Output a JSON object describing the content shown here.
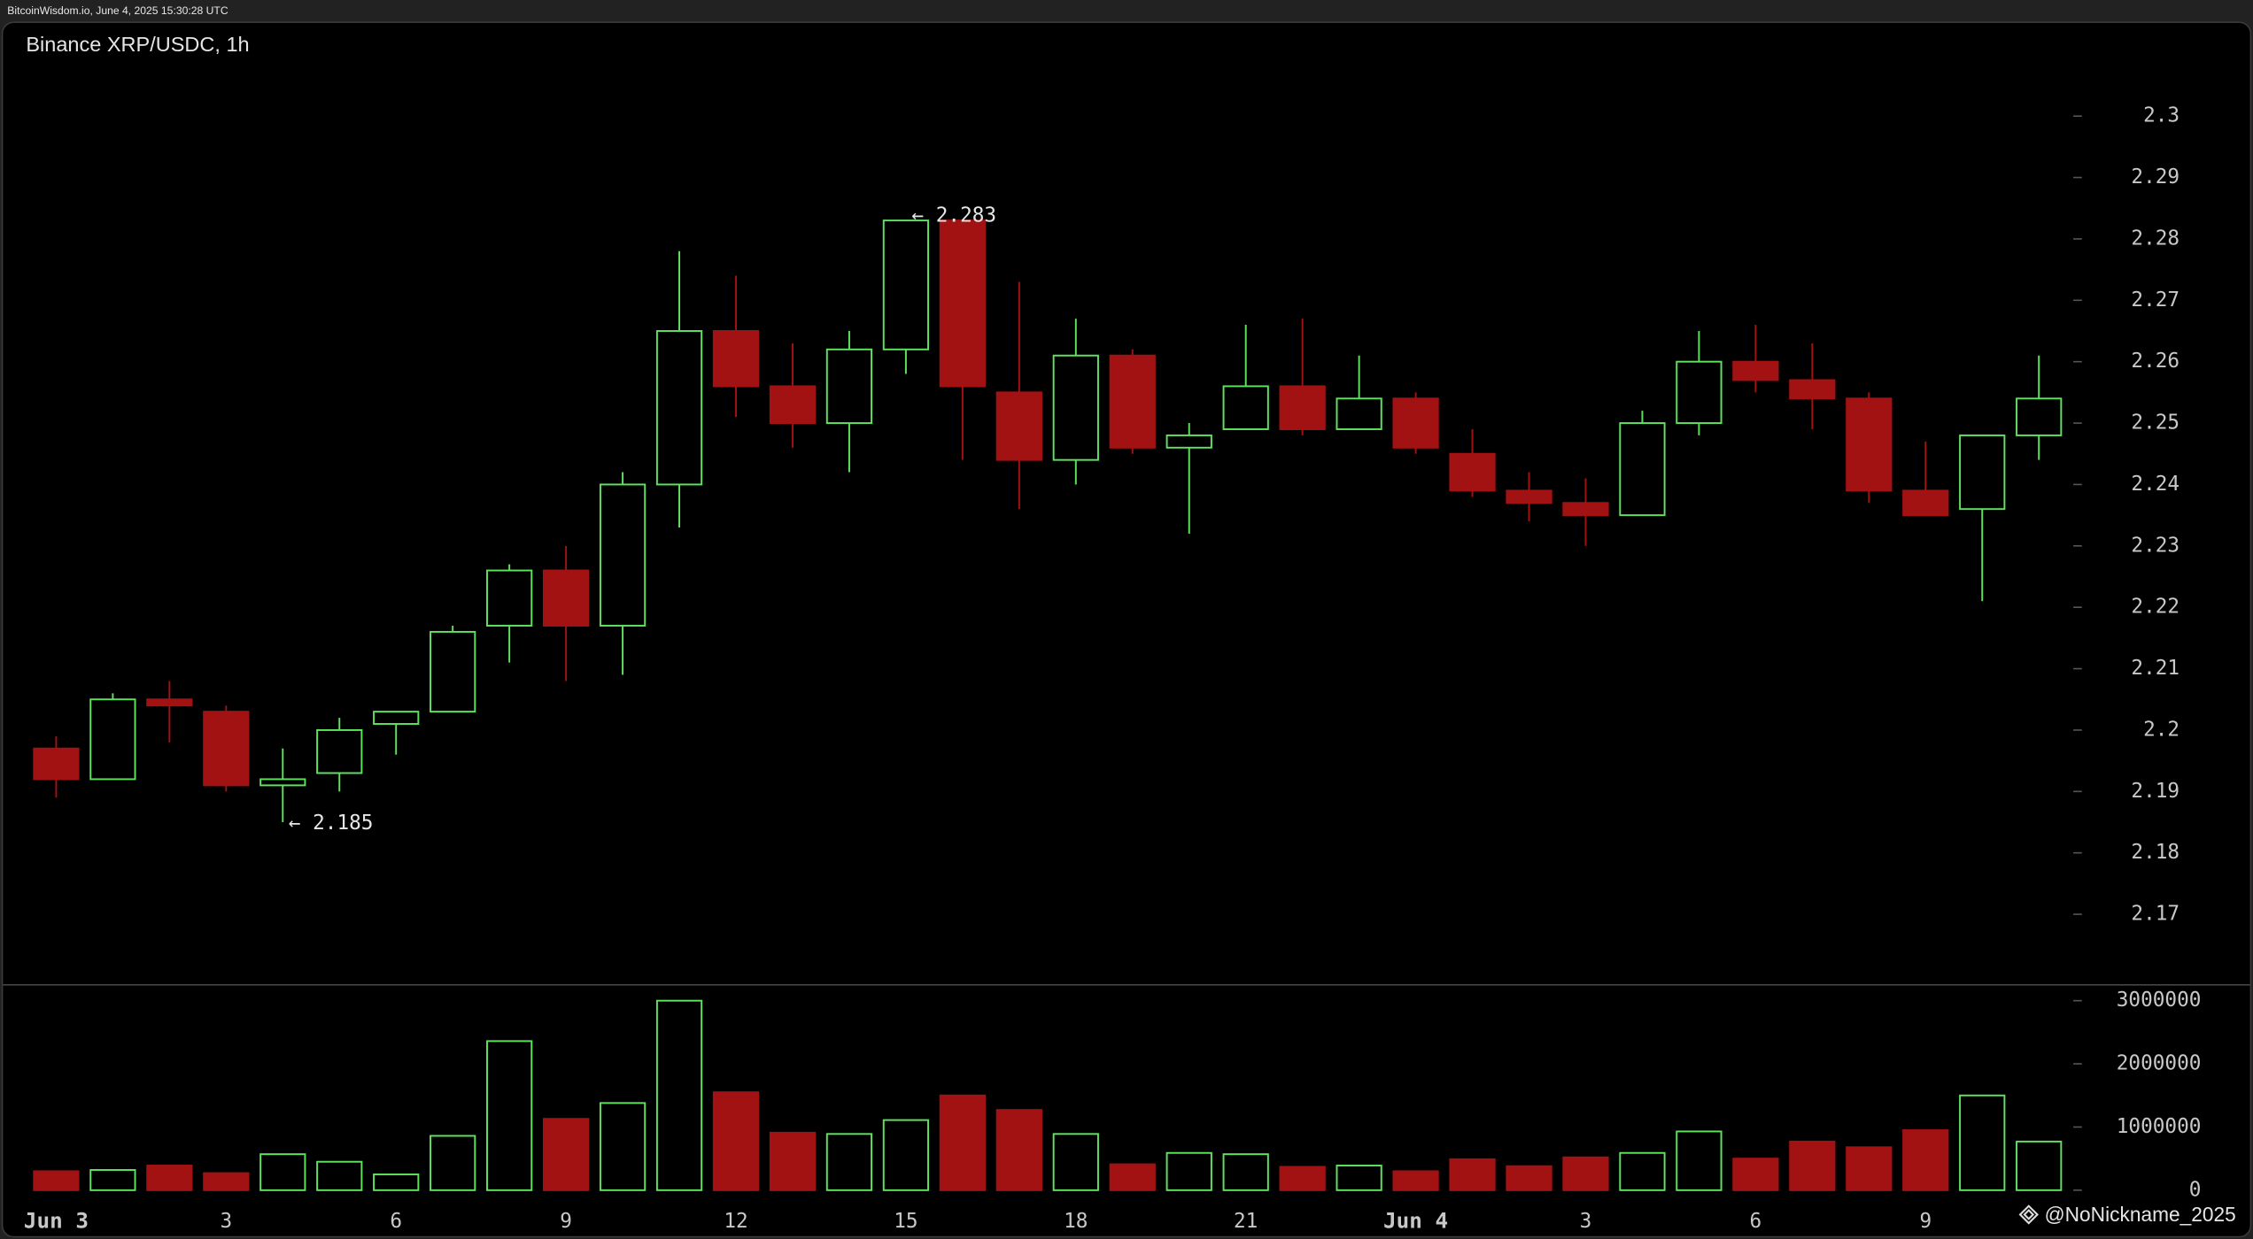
{
  "header": "BitcoinWisdom.io, June 4, 2025 15:30:28 UTC",
  "watermark": "@NoNickname_2025",
  "chart_data": {
    "type": "candlestick",
    "title": "Binance XRP/USDC, 1h",
    "categories": [
      "Jun 3",
      null,
      null,
      "3",
      null,
      null,
      "6",
      null,
      null,
      "9",
      null,
      null,
      "12",
      null,
      null,
      "15",
      null,
      null,
      "18",
      null,
      null,
      "21",
      null,
      null,
      "Jun 4",
      null,
      null,
      "3",
      null,
      null,
      "6",
      null,
      null,
      "9",
      null,
      null
    ],
    "up_color": "#5fe35f",
    "down_color": "#a31212",
    "series": {
      "open": [
        2.197,
        2.192,
        2.205,
        2.203,
        2.191,
        2.193,
        2.201,
        2.203,
        2.217,
        2.226,
        2.217,
        2.24,
        2.265,
        2.256,
        2.25,
        2.262,
        2.283,
        2.255,
        2.244,
        2.261,
        2.246,
        2.249,
        2.256,
        2.249,
        2.254,
        2.245,
        2.239,
        2.237,
        2.235,
        2.25,
        2.26,
        2.257,
        2.254,
        2.239,
        2.236,
        2.248
      ],
      "high": [
        2.199,
        2.206,
        2.208,
        2.204,
        2.197,
        2.202,
        2.203,
        2.217,
        2.227,
        2.23,
        2.242,
        2.278,
        2.274,
        2.263,
        2.265,
        2.283,
        2.283,
        2.273,
        2.267,
        2.262,
        2.25,
        2.266,
        2.267,
        2.261,
        2.255,
        2.249,
        2.242,
        2.241,
        2.252,
        2.265,
        2.266,
        2.263,
        2.255,
        2.247,
        2.248,
        2.261
      ],
      "low": [
        2.189,
        2.192,
        2.198,
        2.19,
        2.185,
        2.19,
        2.196,
        2.203,
        2.211,
        2.208,
        2.209,
        2.233,
        2.251,
        2.246,
        2.242,
        2.258,
        2.244,
        2.236,
        2.24,
        2.245,
        2.232,
        2.249,
        2.248,
        2.249,
        2.245,
        2.238,
        2.234,
        2.23,
        2.235,
        2.248,
        2.255,
        2.249,
        2.237,
        2.235,
        2.221,
        2.244
      ],
      "close": [
        2.192,
        2.205,
        2.204,
        2.191,
        2.192,
        2.2,
        2.203,
        2.216,
        2.226,
        2.217,
        2.24,
        2.265,
        2.256,
        2.25,
        2.262,
        2.283,
        2.256,
        2.244,
        2.261,
        2.246,
        2.248,
        2.256,
        2.249,
        2.254,
        2.246,
        2.239,
        2.237,
        2.235,
        2.25,
        2.26,
        2.257,
        2.254,
        2.239,
        2.235,
        2.248,
        2.254
      ]
    },
    "ylim": [
      2.1585,
      2.3154
    ],
    "yticks": [
      2.17,
      2.18,
      2.19,
      2.2,
      2.21,
      2.22,
      2.23,
      2.24,
      2.25,
      2.26,
      2.27,
      2.28,
      2.29,
      2.3
    ],
    "annotations": [
      "← 2.283",
      "← 2.185"
    ],
    "volume": {
      "values": [
        300000,
        320000,
        390000,
        270000,
        570000,
        450000,
        250000,
        860000,
        2360000,
        1130000,
        1380000,
        3000000,
        1550000,
        910000,
        890000,
        1110000,
        1500000,
        1270000,
        890000,
        410000,
        590000,
        570000,
        370000,
        390000,
        300000,
        490000,
        380000,
        520000,
        590000,
        930000,
        500000,
        770000,
        680000,
        950000,
        1500000,
        770000
      ],
      "ylim": [
        -250000,
        3250000
      ],
      "yticks": [
        0,
        1000000,
        2000000,
        3000000
      ]
    }
  }
}
